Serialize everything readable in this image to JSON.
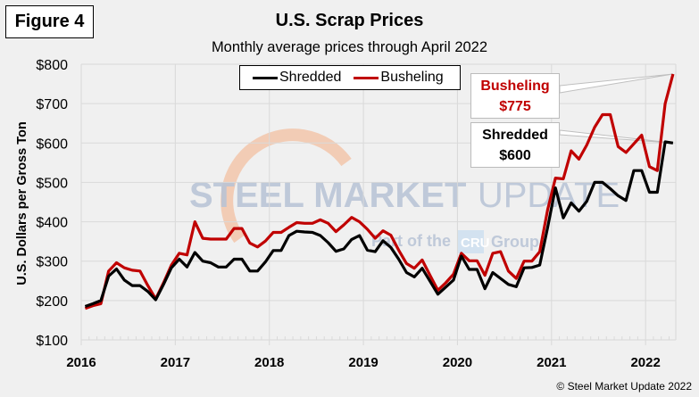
{
  "figure_label": "Figure 4",
  "copyright": "© Steel Market Update 2022",
  "watermark": {
    "line1_bold": "STEEL MARKET",
    "line1_light": "UPDATE",
    "line2_prefix": "Part of the",
    "line2_logo": "CRU",
    "line2_suffix": "Group"
  },
  "callouts": {
    "busheling": {
      "name": "Busheling",
      "value": "$775"
    },
    "shredded": {
      "name": "Shredded",
      "value": "$600"
    }
  },
  "colors": {
    "shredded": "#000000",
    "busheling": "#c00000"
  },
  "chart_data": {
    "type": "line",
    "title": "U.S. Scrap Prices",
    "subtitle": "Monthly average prices through April 2022",
    "xlabel": "",
    "ylabel": "U.S. Dollars per Gross Ton",
    "ylim": [
      100,
      800
    ],
    "yticks": [
      100,
      200,
      300,
      400,
      500,
      600,
      700,
      800
    ],
    "ytick_labels": [
      "$100",
      "$200",
      "$300",
      "$400",
      "$500",
      "$600",
      "$700",
      "$800"
    ],
    "x_start": "2016-01",
    "x_end": "2022-04",
    "xtick_labels": [
      "2016",
      "2017",
      "2018",
      "2019",
      "2020",
      "2021",
      "2022"
    ],
    "grid": true,
    "legend_position": "top-center",
    "series": [
      {
        "name": "Shredded",
        "values": [
          185,
          192,
          200,
          262,
          280,
          252,
          238,
          238,
          223,
          202,
          241,
          283,
          305,
          285,
          322,
          300,
          296,
          285,
          285,
          305,
          305,
          275,
          275,
          298,
          327,
          327,
          365,
          376,
          374,
          373,
          365,
          347,
          325,
          331,
          355,
          365,
          328,
          324,
          352,
          335,
          305,
          271,
          260,
          282,
          249,
          216,
          234,
          252,
          313,
          279,
          279,
          230,
          271,
          256,
          241,
          235,
          283,
          284,
          290,
          385,
          486,
          410,
          448,
          427,
          452,
          500,
          500,
          484,
          466,
          454,
          530,
          530,
          475,
          475,
          603,
          600
        ]
      },
      {
        "name": "Busheling",
        "values": [
          180,
          187,
          192,
          275,
          296,
          283,
          277,
          275,
          238,
          204,
          245,
          290,
          320,
          316,
          400,
          358,
          356,
          356,
          356,
          383,
          383,
          346,
          336,
          351,
          373,
          373,
          386,
          398,
          396,
          396,
          405,
          396,
          375,
          392,
          411,
          400,
          381,
          358,
          377,
          366,
          328,
          294,
          282,
          303,
          264,
          226,
          245,
          267,
          320,
          301,
          301,
          264,
          320,
          324,
          275,
          256,
          300,
          300,
          324,
          430,
          511,
          509,
          580,
          559,
          595,
          640,
          672,
          672,
          591,
          576,
          598,
          620,
          540,
          530,
          700,
          775
        ]
      }
    ],
    "annotations": [
      "Busheling $775",
      "Shredded $600"
    ]
  }
}
